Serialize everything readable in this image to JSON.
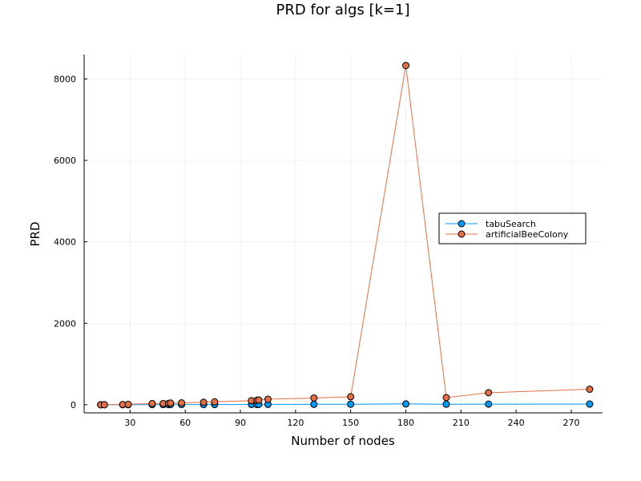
{
  "chart_data": {
    "type": "line",
    "title": "PRD for algs [k=1]",
    "xlabel": "Number of nodes",
    "ylabel": "PRD",
    "xlim": [
      5,
      287
    ],
    "ylim": [
      -200,
      8600
    ],
    "xticks": [
      30,
      60,
      90,
      120,
      150,
      180,
      210,
      240,
      270
    ],
    "yticks": [
      0,
      2000,
      4000,
      6000,
      8000
    ],
    "grid": true,
    "legend_position": "right",
    "x": [
      14,
      16,
      26,
      29,
      42,
      48,
      51,
      52,
      58,
      70,
      76,
      96,
      99,
      100,
      105,
      130,
      150,
      180,
      202,
      225,
      280
    ],
    "series": [
      {
        "name": "tabuSearch",
        "color": "#009af9",
        "values": [
          0,
          0,
          0,
          0,
          2,
          3,
          2,
          4,
          4,
          4,
          5,
          6,
          6,
          7,
          8,
          10,
          12,
          20,
          13,
          14,
          16
        ]
      },
      {
        "name": "artificialBeeColony",
        "color": "#e26f46",
        "values": [
          0,
          0,
          5,
          8,
          30,
          30,
          35,
          40,
          45,
          60,
          70,
          100,
          110,
          115,
          135,
          165,
          195,
          8330,
          175,
          295,
          380
        ]
      }
    ]
  }
}
